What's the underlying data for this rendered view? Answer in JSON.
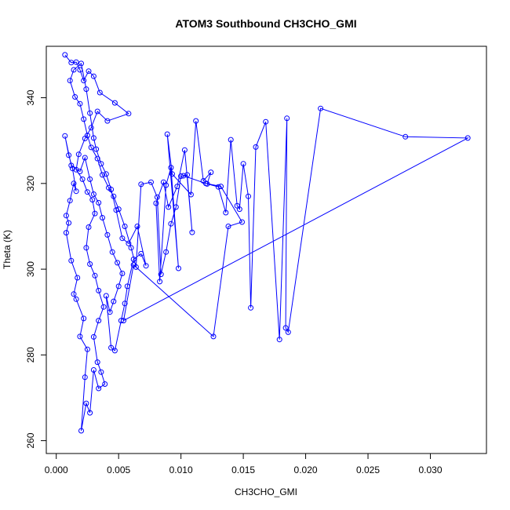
{
  "chart_data": {
    "type": "line",
    "title": "ATOM3 Southbound CH3CHO_GMI",
    "xlabel": "CH3CHO_GMI",
    "ylabel": "Theta (K)",
    "xlim": [
      -0.0008,
      0.0345
    ],
    "ylim": [
      257,
      352
    ],
    "grid": false,
    "x_ticks": [
      0,
      0.005,
      0.01,
      0.015,
      0.02,
      0.025,
      0.03
    ],
    "x_tick_labels": [
      "0.000",
      "0.005",
      "0.010",
      "0.015",
      "0.020",
      "0.025",
      "0.030"
    ],
    "y_ticks": [
      260,
      280,
      300,
      320,
      340
    ],
    "y_tick_labels": [
      "260",
      "280",
      "300",
      "320",
      "340"
    ],
    "series": [
      {
        "color": "#0000ff",
        "marker": "open-circle",
        "points": [
          [
            0.0007,
            350.0
          ],
          [
            0.0012,
            348.2
          ],
          [
            0.0016,
            348.3
          ],
          [
            0.0019,
            346.5
          ],
          [
            0.0022,
            344.0
          ],
          [
            0.0026,
            346.2
          ],
          [
            0.003,
            345.0
          ],
          [
            0.0035,
            341.2
          ],
          [
            0.0047,
            338.8
          ],
          [
            0.0058,
            336.3
          ],
          [
            0.0041,
            334.6
          ],
          [
            0.0033,
            336.8
          ],
          [
            0.0028,
            333.0
          ],
          [
            0.0023,
            330.5
          ],
          [
            0.0018,
            326.8
          ],
          [
            0.0016,
            323.2
          ],
          [
            0.0021,
            321.0
          ],
          [
            0.0025,
            318.0
          ],
          [
            0.0029,
            316.2
          ],
          [
            0.0031,
            313.0
          ],
          [
            0.0026,
            309.8
          ],
          [
            0.0024,
            305.0
          ],
          [
            0.0027,
            301.2
          ],
          [
            0.0031,
            298.5
          ],
          [
            0.0034,
            295.0
          ],
          [
            0.0038,
            291.2
          ],
          [
            0.0034,
            288.0
          ],
          [
            0.003,
            284.2
          ],
          [
            0.0033,
            278.3
          ],
          [
            0.0036,
            276.0
          ],
          [
            0.0039,
            273.2
          ],
          [
            0.0034,
            272.2
          ],
          [
            0.003,
            276.5
          ],
          [
            0.0027,
            266.5
          ],
          [
            0.0024,
            268.7
          ],
          [
            0.002,
            262.3
          ],
          [
            0.0023,
            274.8
          ],
          [
            0.0025,
            281.3
          ],
          [
            0.0019,
            284.3
          ],
          [
            0.0022,
            288.5
          ],
          [
            0.0016,
            293.0
          ],
          [
            0.0014,
            294.2
          ],
          [
            0.0017,
            298.0
          ],
          [
            0.0012,
            302.0
          ],
          [
            0.0008,
            308.5
          ],
          [
            0.001,
            310.8
          ],
          [
            0.0008,
            312.5
          ],
          [
            0.0011,
            316.0
          ],
          [
            0.0014,
            320.0
          ],
          [
            0.0016,
            318.2
          ],
          [
            0.0013,
            323.5
          ],
          [
            0.001,
            326.6
          ],
          [
            0.0007,
            331.1
          ],
          [
            0.0012,
            324.2
          ],
          [
            0.0019,
            322.8
          ],
          [
            0.0023,
            326.0
          ],
          [
            0.0027,
            321.0
          ],
          [
            0.003,
            317.5
          ],
          [
            0.0034,
            315.5
          ],
          [
            0.0037,
            312.0
          ],
          [
            0.0041,
            308.0
          ],
          [
            0.0045,
            304.0
          ],
          [
            0.0049,
            301.5
          ],
          [
            0.0053,
            299.0
          ],
          [
            0.005,
            296.0
          ],
          [
            0.0046,
            292.5
          ],
          [
            0.0043,
            290.0
          ],
          [
            0.004,
            293.8
          ],
          [
            0.0044,
            281.7
          ],
          [
            0.0047,
            281.0
          ],
          [
            0.0052,
            288.0
          ],
          [
            0.0055,
            292.0
          ],
          [
            0.0057,
            296.0
          ],
          [
            0.0062,
            302.3
          ],
          [
            0.0068,
            303.6
          ],
          [
            0.0072,
            300.8
          ],
          [
            0.0065,
            310.0
          ],
          [
            0.0058,
            306.0
          ],
          [
            0.0053,
            307.2
          ],
          [
            0.0048,
            313.8
          ],
          [
            0.0044,
            318.6
          ],
          [
            0.004,
            322.2
          ],
          [
            0.0036,
            324.6
          ],
          [
            0.0032,
            328.0
          ],
          [
            0.003,
            330.6
          ],
          [
            0.0027,
            336.4
          ],
          [
            0.0024,
            342.0
          ],
          [
            0.002,
            348.0
          ],
          [
            0.0014,
            346.5
          ],
          [
            0.0011,
            344.0
          ],
          [
            0.0015,
            340.2
          ],
          [
            0.0019,
            338.6
          ],
          [
            0.0022,
            335.0
          ],
          [
            0.0025,
            331.2
          ],
          [
            0.0028,
            328.4
          ],
          [
            0.0033,
            325.8
          ],
          [
            0.0037,
            322.0
          ],
          [
            0.0042,
            319.0
          ],
          [
            0.0046,
            317.0
          ],
          [
            0.005,
            314.0
          ],
          [
            0.0055,
            310.0
          ],
          [
            0.006,
            305.0
          ],
          [
            0.0064,
            300.5
          ],
          [
            0.0068,
            319.8
          ],
          [
            0.0076,
            320.3
          ],
          [
            0.0081,
            316.8
          ],
          [
            0.0084,
            298.8
          ],
          [
            0.0088,
            304.0
          ],
          [
            0.0092,
            310.6
          ],
          [
            0.0096,
            314.5
          ],
          [
            0.01,
            321.7
          ],
          [
            0.0105,
            322.0
          ],
          [
            0.0109,
            308.6
          ],
          [
            0.0103,
            327.8
          ],
          [
            0.0097,
            319.3
          ],
          [
            0.009,
            314.5
          ],
          [
            0.0086,
            320.3
          ],
          [
            0.008,
            315.4
          ],
          [
            0.0083,
            297.1
          ],
          [
            0.0088,
            319.6
          ],
          [
            0.0092,
            323.7
          ],
          [
            0.0098,
            300.2
          ],
          [
            0.0089,
            331.5
          ],
          [
            0.0093,
            322.2
          ],
          [
            0.0108,
            317.4
          ],
          [
            0.0112,
            334.6
          ],
          [
            0.0118,
            320.6
          ],
          [
            0.0124,
            322.6
          ],
          [
            0.0121,
            319.9
          ],
          [
            0.013,
            319.2
          ],
          [
            0.0136,
            313.2
          ],
          [
            0.014,
            330.2
          ],
          [
            0.0145,
            314.8
          ],
          [
            0.0147,
            314.0
          ],
          [
            0.015,
            324.6
          ],
          [
            0.0154,
            317.0
          ],
          [
            0.0156,
            291.0
          ],
          [
            0.016,
            328.5
          ],
          [
            0.0168,
            334.4
          ],
          [
            0.0179,
            283.6
          ],
          [
            0.0185,
            335.2
          ],
          [
            0.0184,
            286.3
          ],
          [
            0.0186,
            285.3
          ],
          [
            0.0212,
            337.5
          ],
          [
            0.028,
            330.9
          ],
          [
            0.033,
            330.6
          ],
          [
            0.0054,
            288.0
          ],
          [
            0.0062,
            301.0
          ],
          [
            0.0126,
            284.3
          ],
          [
            0.0138,
            310.0
          ],
          [
            0.0149,
            311.0
          ],
          [
            0.0132,
            319.3
          ],
          [
            0.012,
            320.0
          ],
          [
            0.0102,
            321.8
          ]
        ]
      }
    ]
  }
}
